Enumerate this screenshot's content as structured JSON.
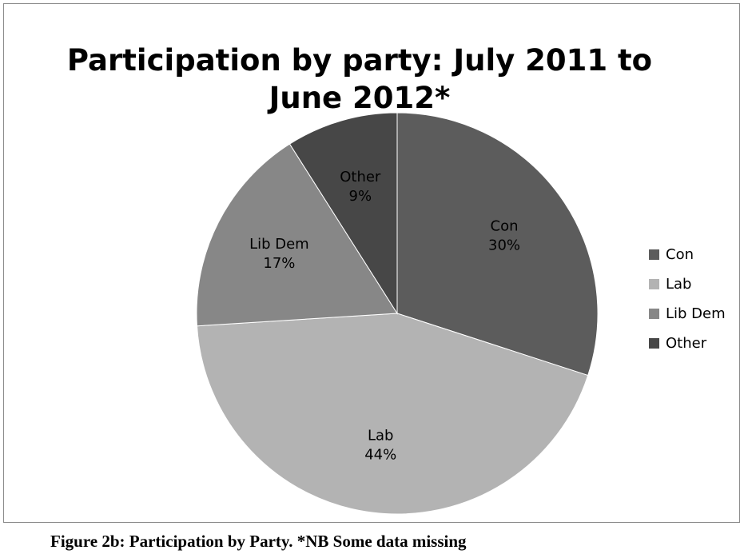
{
  "chart_data": {
    "type": "pie",
    "title": "Participation by party: July 2011 to June 2012*",
    "categories": [
      "Con",
      "Lab",
      "Lib Dem",
      "Other"
    ],
    "values": [
      30,
      44,
      17,
      9
    ],
    "value_labels": [
      "30%",
      "44%",
      "17%",
      "9%"
    ],
    "colors": [
      "#5c5c5c",
      "#b3b3b3",
      "#878787",
      "#474747"
    ],
    "legend_position": "right",
    "start_angle": "12 o'clock, clockwise"
  },
  "caption": "Figure 2b: Participation by Party.  *NB Some data missing"
}
